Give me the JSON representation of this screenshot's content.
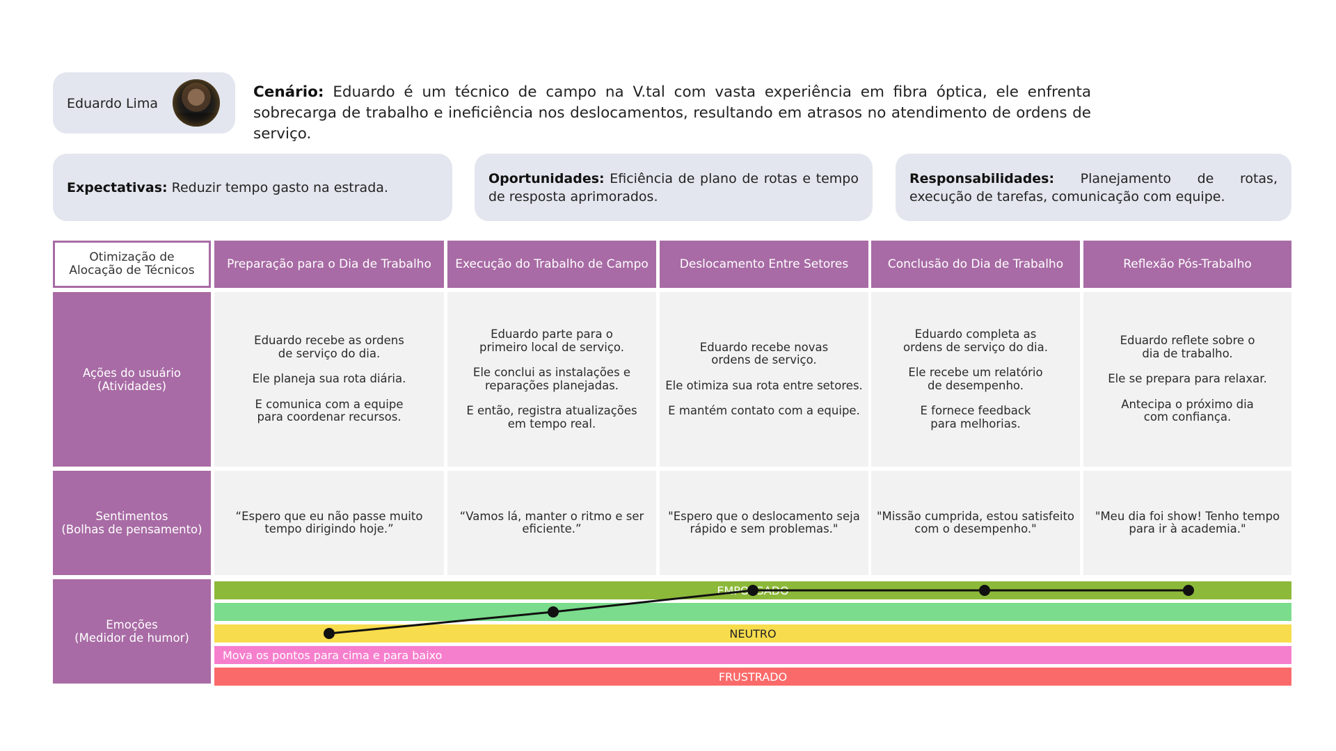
{
  "persona": {
    "name": "Eduardo Lima"
  },
  "scenario": {
    "label": "Cenário:",
    "text": " Eduardo é um técnico de campo na V.tal com vasta experiência em fibra óptica, ele enfrenta sobrecarga de trabalho e ineficiência nos deslocamentos, resultando em atrasos no atendimento de ordens de serviço."
  },
  "info": {
    "expectativas": {
      "label": "Expectativas:",
      "text": " Reduzir tempo gasto na estrada."
    },
    "oportunidades": {
      "label": "Oportunidades:",
      "text": " Eficiência de plano de rotas e tempo de resposta aprimorados."
    },
    "responsabilidades": {
      "label": "Responsabilidades:",
      "text": " Planejamento de rotas, execução de tarefas, comunicação com equipe."
    }
  },
  "map": {
    "title_line1": "Otimização de",
    "title_line2": "Alocação de Técnicos",
    "stages": [
      "Preparação para o Dia de Trabalho",
      "Execução do Trabalho de Campo",
      "Deslocamento Entre Setores",
      "Conclusão do Dia de Trabalho",
      "Reflexão Pós-Trabalho"
    ],
    "rows": {
      "actions": {
        "line1": "Ações do usuário",
        "line2": "(Atividades)"
      },
      "feelings": {
        "line1": "Sentimentos",
        "line2": "(Bolhas de pensamento)"
      },
      "emotions": {
        "line1": "Emoções",
        "line2": "(Medidor de humor)"
      }
    },
    "actions": [
      [
        "Eduardo recebe as ordens de serviço do dia.",
        "Ele planeja sua rota diária.",
        "E comunica com a equipe para coordenar recursos."
      ],
      [
        "Eduardo parte para o primeiro local de serviço.",
        "Ele conclui as instalações e reparações planejadas.",
        "E então, registra atualizações em tempo real."
      ],
      [
        "Eduardo recebe novas ordens de serviço.",
        "Ele otimiza sua rota entre setores.",
        "E mantém contato com a equipe."
      ],
      [
        "Eduardo completa as ordens de serviço do dia.",
        "Ele recebe um relatório de desempenho.",
        "E fornece feedback para melhorias."
      ],
      [
        "Eduardo reflete sobre o dia de trabalho.",
        "Ele se prepara para relaxar.",
        "Antecipa o próximo dia com confiança."
      ]
    ],
    "feelings": [
      "“Espero que eu não passe muito tempo dirigindo hoje.”",
      "“Vamos lá, manter o ritmo e ser eficiente.”",
      "\"Espero que o deslocamento seja rápido e sem problemas.\"",
      "\"Missão cumprida, estou satisfeito com o desempenho.\"",
      "\"Meu dia foi show! Tenho tempo para ir à academia.\""
    ]
  },
  "mood": {
    "bands": [
      {
        "label": "EMPOLGADO",
        "color": "#8db93a"
      },
      {
        "label": "",
        "color": "#7adc8c"
      },
      {
        "label": "NEUTRO",
        "color": "#f7dc4d"
      },
      {
        "label": "",
        "color": "#f67fcd"
      },
      {
        "label": "FRUSTRADO",
        "color": "#fb6a6a"
      }
    ],
    "hint": "Mova os pontos para cima e para baixo",
    "levels": [
      3,
      4,
      5,
      5,
      5
    ]
  },
  "colors": {
    "accent": "#a86ba5",
    "panel": "#e3e6ee",
    "cell": "#f2f2f2"
  }
}
